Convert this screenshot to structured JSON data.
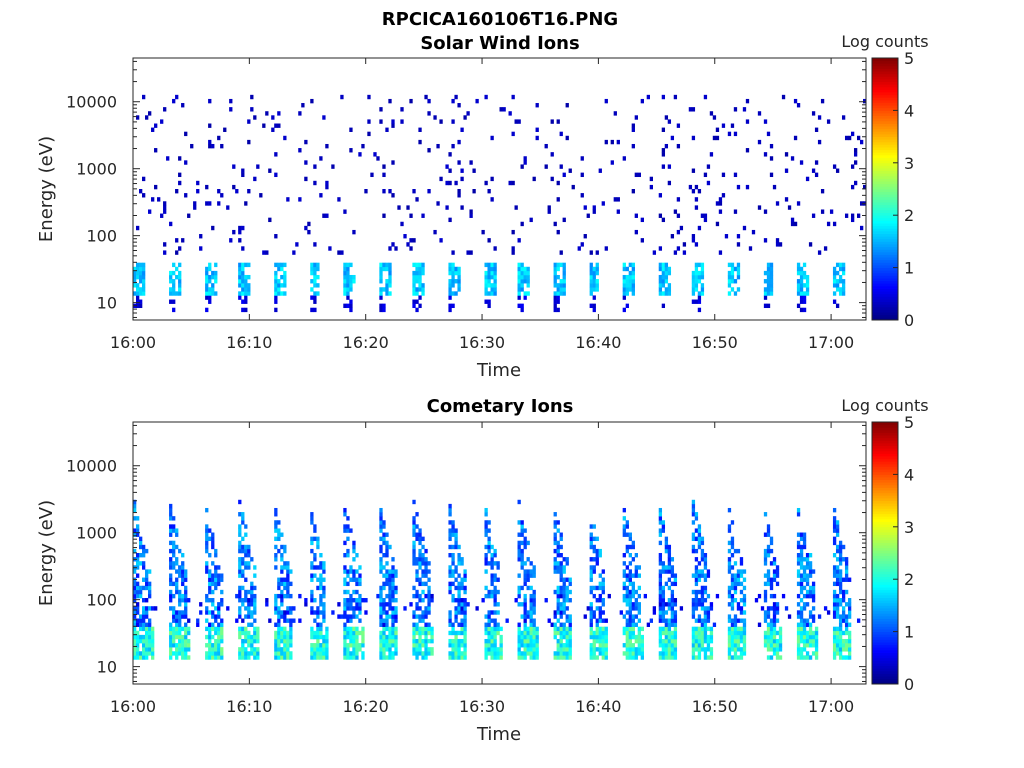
{
  "figure": {
    "title": "RPCICA160106T16.PNG"
  },
  "chart_data": [
    {
      "type": "heatmap",
      "title": "Solar Wind Ions",
      "xlabel": "Time",
      "ylabel": "Energy (eV)",
      "x_range": [
        "16:00",
        "17:03"
      ],
      "x_ticks": [
        "16:00",
        "16:10",
        "16:20",
        "16:30",
        "16:40",
        "16:50",
        "17:00"
      ],
      "y_scale": "log",
      "y_range": [
        5.5,
        45000
      ],
      "y_ticks": [
        10,
        100,
        1000,
        10000
      ],
      "y_tick_labels": [
        "10",
        "100",
        "1000",
        "10000"
      ],
      "colorbar": {
        "label": "Log counts",
        "range": [
          0,
          5
        ],
        "ticks": [
          "0",
          "1",
          "2",
          "3",
          "4",
          "5"
        ],
        "colormap": "jet"
      },
      "pattern": {
        "sweep_count": 21,
        "low_energy_band_eV": [
          12,
          40
        ],
        "low_energy_level": 1.3,
        "high_energy_scatter": "sparse single counts up to ~10000 eV"
      }
    },
    {
      "type": "heatmap",
      "title": "Cometary Ions",
      "xlabel": "Time",
      "ylabel": "Energy (eV)",
      "x_range": [
        "16:00",
        "17:03"
      ],
      "x_ticks": [
        "16:00",
        "16:10",
        "16:20",
        "16:30",
        "16:40",
        "16:50",
        "17:00"
      ],
      "y_scale": "log",
      "y_range": [
        5.5,
        45000
      ],
      "y_ticks": [
        10,
        100,
        1000,
        10000
      ],
      "y_tick_labels": [
        "10",
        "100",
        "1000",
        "10000"
      ],
      "colorbar": {
        "label": "Log counts",
        "range": [
          0,
          5
        ],
        "ticks": [
          "0",
          "1",
          "2",
          "3",
          "4",
          "5"
        ],
        "colormap": "jet"
      },
      "pattern": {
        "sweep_count": 21,
        "low_energy_band_eV": [
          12,
          40
        ],
        "low_energy_level": 2.5,
        "plume_top_eV": 3000,
        "plume_level": 1.4
      }
    }
  ]
}
